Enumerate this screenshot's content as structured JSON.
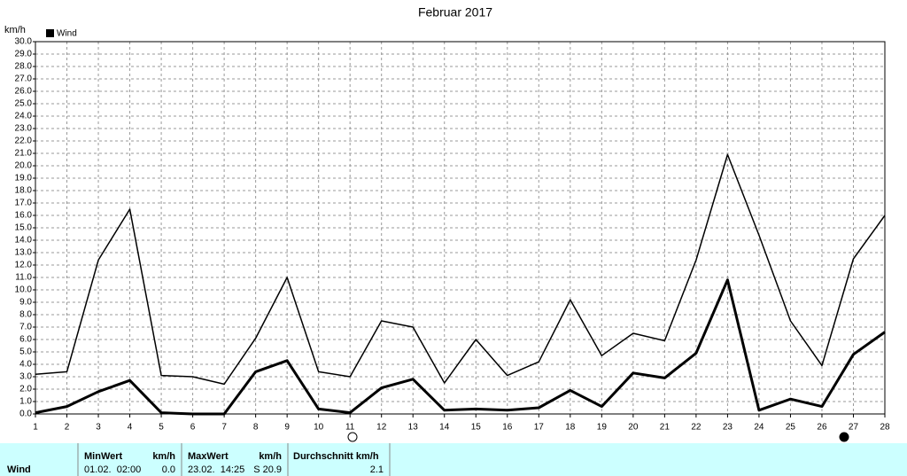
{
  "chart_data": {
    "type": "line",
    "title": "Februar 2017",
    "ylabel": "km/h",
    "x": [
      1,
      2,
      3,
      4,
      5,
      6,
      7,
      8,
      9,
      10,
      11,
      12,
      13,
      14,
      15,
      16,
      17,
      18,
      19,
      20,
      21,
      22,
      23,
      24,
      25,
      26,
      27,
      28
    ],
    "xlim": [
      1,
      28
    ],
    "xticks": [
      1,
      2,
      3,
      4,
      5,
      6,
      7,
      8,
      9,
      10,
      11,
      12,
      13,
      14,
      15,
      16,
      17,
      18,
      19,
      20,
      21,
      22,
      23,
      24,
      25,
      26,
      27,
      28
    ],
    "ylim": [
      0,
      30
    ],
    "yticks": [
      {
        "value": 0,
        "label": "0.0"
      },
      {
        "value": 1,
        "label": "1.0"
      },
      {
        "value": 2,
        "label": "2.0"
      },
      {
        "value": 3,
        "label": "3.0"
      },
      {
        "value": 4,
        "label": "4.0"
      },
      {
        "value": 5,
        "label": "5.0"
      },
      {
        "value": 6,
        "label": "6.0"
      },
      {
        "value": 7,
        "label": "7.0"
      },
      {
        "value": 8,
        "label": "8.0"
      },
      {
        "value": 9,
        "label": "9.0"
      },
      {
        "value": 10,
        "label": "10.0"
      },
      {
        "value": 11,
        "label": "11.0"
      },
      {
        "value": 12,
        "label": "12.0"
      },
      {
        "value": 13,
        "label": "13.0"
      },
      {
        "value": 14,
        "label": "14.0"
      },
      {
        "value": 15,
        "label": "15.0"
      },
      {
        "value": 16,
        "label": "16.0"
      },
      {
        "value": 17,
        "label": "17.0"
      },
      {
        "value": 18,
        "label": "18.0"
      },
      {
        "value": 19,
        "label": "19.0"
      },
      {
        "value": 20,
        "label": "20.0"
      },
      {
        "value": 21,
        "label": "21.0"
      },
      {
        "value": 22,
        "label": "22.0"
      },
      {
        "value": 23,
        "label": "23.0"
      },
      {
        "value": 24,
        "label": "24.0"
      },
      {
        "value": 25,
        "label": "25.0"
      },
      {
        "value": 26,
        "label": "26.0"
      },
      {
        "value": 27,
        "label": "27.0"
      },
      {
        "value": 28,
        "label": "28.0"
      },
      {
        "value": 29,
        "label": "29.0"
      },
      {
        "value": 30,
        "label": "30.0"
      }
    ],
    "grid": true,
    "legend": "top-left",
    "series": [
      {
        "color": "#000000",
        "width": 1.5,
        "values": [
          3.2,
          3.4,
          12.4,
          16.5,
          3.1,
          3.0,
          2.4,
          6.1,
          11.0,
          3.4,
          3.0,
          7.5,
          7.0,
          2.5,
          6.0,
          3.1,
          4.2,
          9.2,
          4.7,
          6.5,
          5.9,
          12.4,
          20.9,
          14.4,
          7.5,
          3.9,
          12.5,
          16.0
        ]
      },
      {
        "name": "Wind",
        "color": "#000000",
        "width": 3,
        "values": [
          0.1,
          0.6,
          1.8,
          2.7,
          0.1,
          0.0,
          0.0,
          3.4,
          4.3,
          0.4,
          0.1,
          2.1,
          2.8,
          0.3,
          0.4,
          0.3,
          0.5,
          1.9,
          0.6,
          3.3,
          2.9,
          4.9,
          10.8,
          0.3,
          1.2,
          0.6,
          4.8,
          6.6
        ]
      }
    ]
  },
  "stats": {
    "row_label": "Wind",
    "min_header": "MinWert",
    "min_unit": "km/h",
    "min_date": "01.02.  02:00",
    "min_value": "0.0",
    "max_header": "MaxWert",
    "max_unit": "km/h",
    "max_date": "23.02.  14:25",
    "max_value": "S 20.9",
    "avg_header": "Durchschnitt km/h",
    "avg_value": "2.1"
  }
}
